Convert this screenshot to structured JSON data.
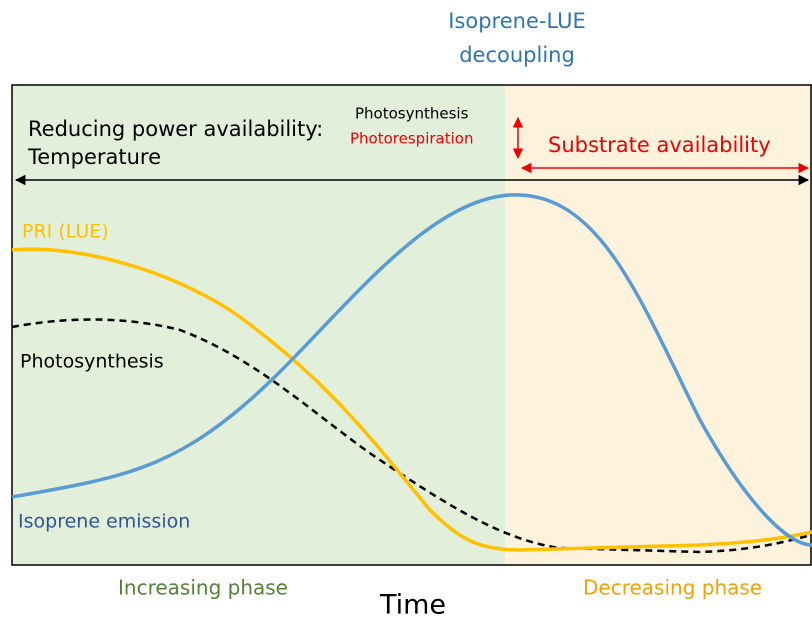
{
  "header": {
    "title": [
      "Isoprene-LUE",
      "decoupling"
    ]
  },
  "drivers": {
    "left": [
      "Reducing power availability:",
      "Temperature"
    ],
    "middle": [
      "Photosynthesis",
      "Photorespiration"
    ],
    "right": "Substrate availability"
  },
  "curves": {
    "pri": "PRI (LUE)",
    "photosynthesis": "Photosynthesis",
    "isoprene": "Isoprene emission"
  },
  "phases": {
    "increasing": "Increasing phase",
    "decreasing": "Decreasing phase"
  },
  "axis": {
    "x_label": "Time"
  }
}
